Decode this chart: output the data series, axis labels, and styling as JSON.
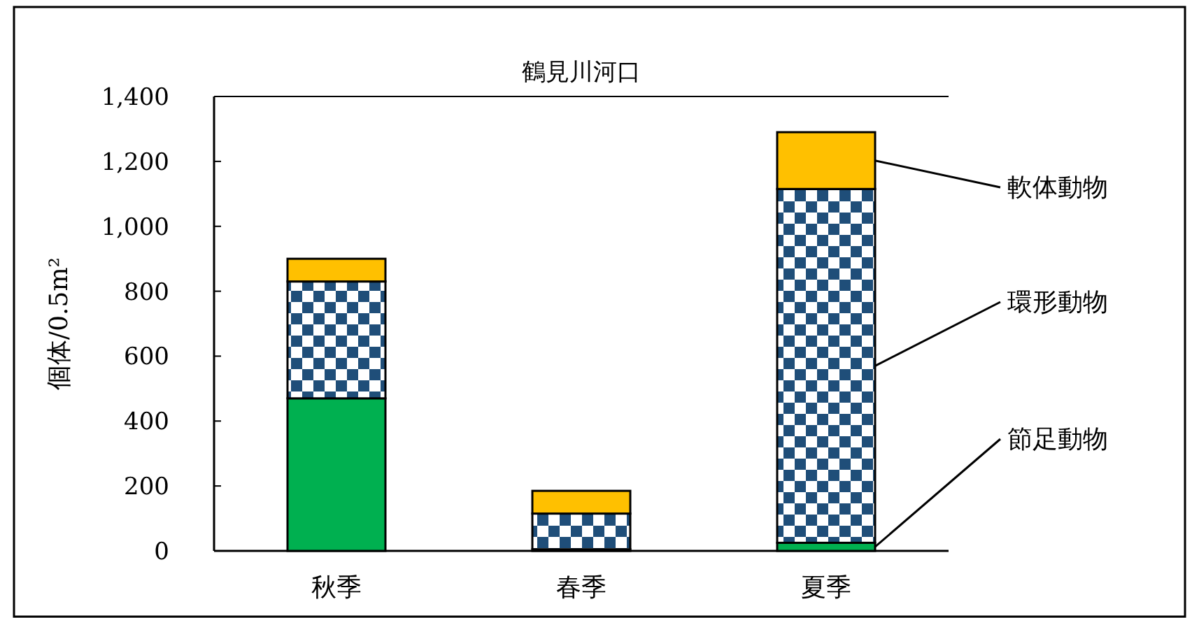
{
  "chart_data": {
    "type": "bar",
    "title": "鶴見川河口",
    "ylabel": "個体/0.5m²",
    "categories": [
      "秋季",
      "春季",
      "夏季"
    ],
    "stacked": true,
    "legend": "right",
    "series": [
      {
        "name": "節足動物",
        "color": "#00b050",
        "values": [
          470,
          5,
          25
        ]
      },
      {
        "name": "環形動物",
        "color": "#1f4e79",
        "values": [
          360,
          110,
          1090
        ]
      },
      {
        "name": "軟体動物",
        "color": "#ffc000",
        "values": [
          70,
          70,
          175
        ]
      }
    ],
    "ylim": [
      0,
      1400
    ],
    "yticks": [
      0,
      200,
      400,
      600,
      800,
      {
        "value": 1000,
        "label": "1,000"
      },
      {
        "value": 1200,
        "label": "1,200"
      },
      {
        "value": 1400,
        "label": "1,400"
      }
    ],
    "grid": false
  }
}
